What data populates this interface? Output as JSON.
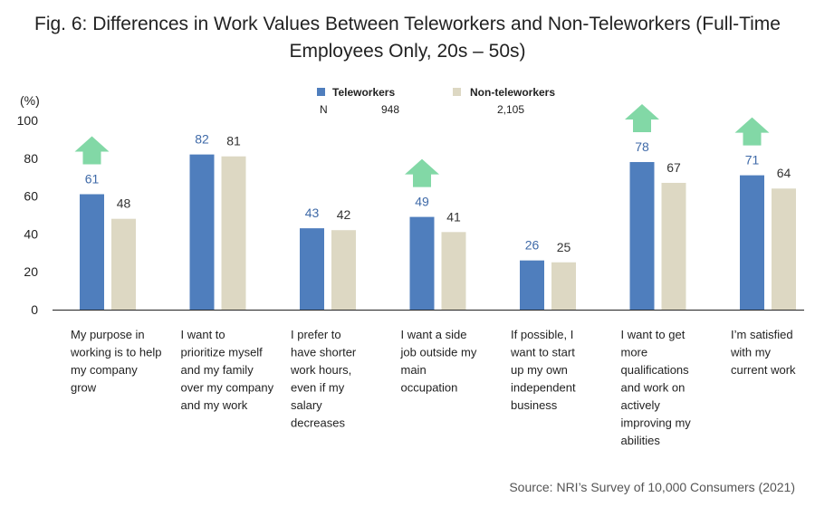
{
  "title_line1": "Fig. 6: Differences in Work Values Between Teleworkers and Non-Teleworkers (Full-Time",
  "title_line2": "Employees Only, 20s – 50s)",
  "source": "Source: NRI’s Survey of 10,000 Consumers (2021)",
  "colors": {
    "teleworkers": "#4f7ebd",
    "non_teleworkers": "#ddd8c3",
    "arrow": "#82d8a6",
    "tele_label": "#3f6aa8",
    "axis": "#222222"
  },
  "chart_data": {
    "type": "bar",
    "ylabel": "(%)",
    "ylim": [
      0,
      100
    ],
    "yticks": [
      0,
      20,
      40,
      60,
      80,
      100
    ],
    "grid": false,
    "legend_position": "top-center",
    "n_label": "N",
    "categories": [
      [
        "My purpose in",
        "working is to help",
        "my company",
        "grow"
      ],
      [
        "I want to",
        "prioritize myself",
        "and my family",
        "over my company",
        "and my work"
      ],
      [
        "I prefer to",
        "have shorter",
        "work hours,",
        "even if my",
        "salary",
        "decreases"
      ],
      [
        "I want a side",
        "job outside my",
        "main",
        "occupation"
      ],
      [
        "If possible, I",
        "want to start",
        "up my own",
        "independent",
        "business"
      ],
      [
        "I want to get",
        "more",
        "qualifications",
        "and work on",
        "actively",
        "improving my",
        "abilities"
      ],
      [
        "I’m satisfied",
        "with my",
        "current work"
      ]
    ],
    "series": [
      {
        "name": "Teleworkers",
        "n": "948",
        "values": [
          61,
          82,
          43,
          49,
          26,
          78,
          71
        ]
      },
      {
        "name": "Non-teleworkers",
        "n": "2,105",
        "values": [
          48,
          81,
          42,
          41,
          25,
          67,
          64
        ]
      }
    ],
    "up_arrows": [
      true,
      false,
      false,
      true,
      false,
      true,
      true
    ]
  }
}
